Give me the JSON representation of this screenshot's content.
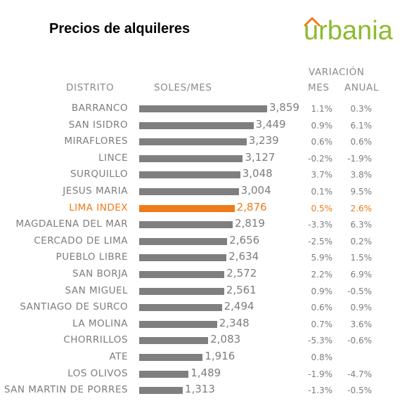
{
  "chart_data": {
    "type": "bar",
    "title": "Precios de alquileres",
    "brand": "urbania",
    "headers": {
      "district": "DISTRITO",
      "value": "SOLES/MES",
      "variation": "VARIACIÓN",
      "month": "MES",
      "annual": "ANUAL"
    },
    "bar_color": "#7f7f7f",
    "highlight_color": "#f07a1a",
    "brand_color": "#8dbb2e",
    "brand_accent": "#f07a1a",
    "xlim": [
      0,
      3859
    ],
    "rows": [
      {
        "district": "BARRANCO",
        "value": 3859,
        "label": "3,859",
        "mes": "1.1%",
        "anual": "0.3%"
      },
      {
        "district": "SAN ISIDRO",
        "value": 3449,
        "label": "3,449",
        "mes": "0.9%",
        "anual": "6.1%"
      },
      {
        "district": "MIRAFLORES",
        "value": 3239,
        "label": "3,239",
        "mes": "0.6%",
        "anual": "0.6%"
      },
      {
        "district": "LINCE",
        "value": 3127,
        "label": "3,127",
        "mes": "-0.2%",
        "anual": "-1.9%"
      },
      {
        "district": "SURQUILLO",
        "value": 3048,
        "label": "3,048",
        "mes": "3.7%",
        "anual": "3.8%"
      },
      {
        "district": "JESUS MARIA",
        "value": 3004,
        "label": "3,004",
        "mes": "0.1%",
        "anual": "9.5%"
      },
      {
        "district": "LIMA INDEX",
        "value": 2876,
        "label": "2,876",
        "mes": "0.5%",
        "anual": "2.6%",
        "highlight": true
      },
      {
        "district": "MAGDALENA DEL MAR",
        "value": 2819,
        "label": "2,819",
        "mes": "-3.3%",
        "anual": "6.3%"
      },
      {
        "district": "CERCADO DE LIMA",
        "value": 2656,
        "label": "2,656",
        "mes": "-2.5%",
        "anual": "0.2%"
      },
      {
        "district": "PUEBLO LIBRE",
        "value": 2634,
        "label": "2,634",
        "mes": "5.9%",
        "anual": "1.5%"
      },
      {
        "district": "SAN BORJA",
        "value": 2572,
        "label": "2,572",
        "mes": "2.2%",
        "anual": "6.9%"
      },
      {
        "district": "SAN MIGUEL",
        "value": 2561,
        "label": "2,561",
        "mes": "0.9%",
        "anual": "-0.5%"
      },
      {
        "district": "SANTIAGO DE SURCO",
        "value": 2494,
        "label": "2,494",
        "mes": "0.6%",
        "anual": "0.9%"
      },
      {
        "district": "LA MOLINA",
        "value": 2348,
        "label": "2,348",
        "mes": "0.7%",
        "anual": "3.6%"
      },
      {
        "district": "CHORRILLOS",
        "value": 2083,
        "label": "2,083",
        "mes": "-5.3%",
        "anual": "-0.6%"
      },
      {
        "district": "ATE",
        "value": 1916,
        "label": "1,916",
        "mes": "0.8%",
        "anual": ""
      },
      {
        "district": "LOS OLIVOS",
        "value": 1489,
        "label": "1,489",
        "mes": "-1.9%",
        "anual": "-4.7%"
      },
      {
        "district": "SAN MARTIN DE PORRES",
        "value": 1313,
        "label": "1,313",
        "mes": "-1.3%",
        "anual": "-0.5%"
      }
    ]
  }
}
